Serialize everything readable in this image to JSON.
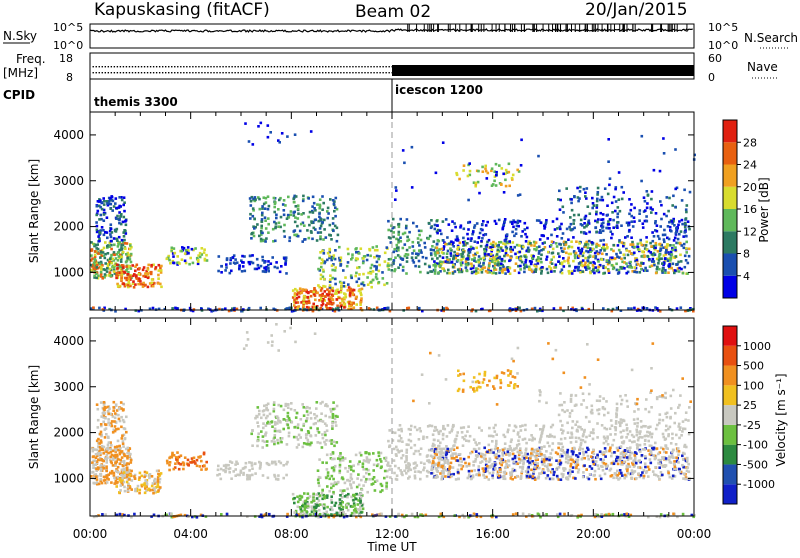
{
  "header": {
    "station": "Kapuskasing (fitACF)",
    "beam": "Beam 02",
    "date": "20/Jan/2015"
  },
  "top_panels": {
    "nsky_label": "N.Sky",
    "nsky_ticks": [
      "10^5",
      "10^0"
    ],
    "nsearch_label": "N.Search",
    "nsearch_ticks": [
      "10^5",
      "10^0"
    ],
    "freq_label": "Freq.",
    "freq_unit": "[MHz]",
    "freq_ticks": [
      "18",
      "8"
    ],
    "nave_label": "Nave",
    "nave_ticks": [
      "60",
      "0"
    ],
    "cpid_label": "CPID",
    "cpid_modes": [
      "themis 3300",
      "icescon 1200"
    ]
  },
  "chart_data": [
    {
      "type": "heatmap",
      "panel": "power",
      "ylabel": "Slant Range [km]",
      "xlabel": "Time UT",
      "x_ticks": [
        "00:00",
        "04:00",
        "08:00",
        "12:00",
        "16:00",
        "20:00",
        "00:00"
      ],
      "x_range_hours": [
        0,
        24
      ],
      "y_ticks": [
        1000,
        2000,
        3000,
        4000
      ],
      "y_range_km": [
        180,
        4500
      ],
      "colorbar_label": "Power [dB]",
      "colorbar_ticks": [
        "4",
        "8",
        "12",
        "16",
        "20",
        "24",
        "28"
      ],
      "colorbar_colors": [
        "#0000e6",
        "#1a4fb0",
        "#2c7a62",
        "#5fb85a",
        "#d8dc2e",
        "#f0a020",
        "#e86010",
        "#e02010"
      ],
      "mode_change_time_hours": 12
    },
    {
      "type": "heatmap",
      "panel": "velocity",
      "ylabel": "Slant Range [km]",
      "xlabel": "Time UT",
      "x_ticks": [
        "00:00",
        "04:00",
        "08:00",
        "12:00",
        "16:00",
        "20:00",
        "00:00"
      ],
      "x_range_hours": [
        0,
        24
      ],
      "y_ticks": [
        1000,
        2000,
        3000,
        4000
      ],
      "y_range_km": [
        180,
        4500
      ],
      "colorbar_label": "Velocity [m s⁻¹]",
      "colorbar_ticks": [
        "1000",
        "500",
        "100",
        "25",
        "-25",
        "-100",
        "-500",
        "-1000"
      ],
      "colorbar_colors": [
        "#1020c8",
        "#2050b0",
        "#2c8a40",
        "#6cc040",
        "#c8c8c0",
        "#f0c020",
        "#f09020",
        "#e85010",
        "#e01010"
      ],
      "mode_change_time_hours": 12
    }
  ]
}
